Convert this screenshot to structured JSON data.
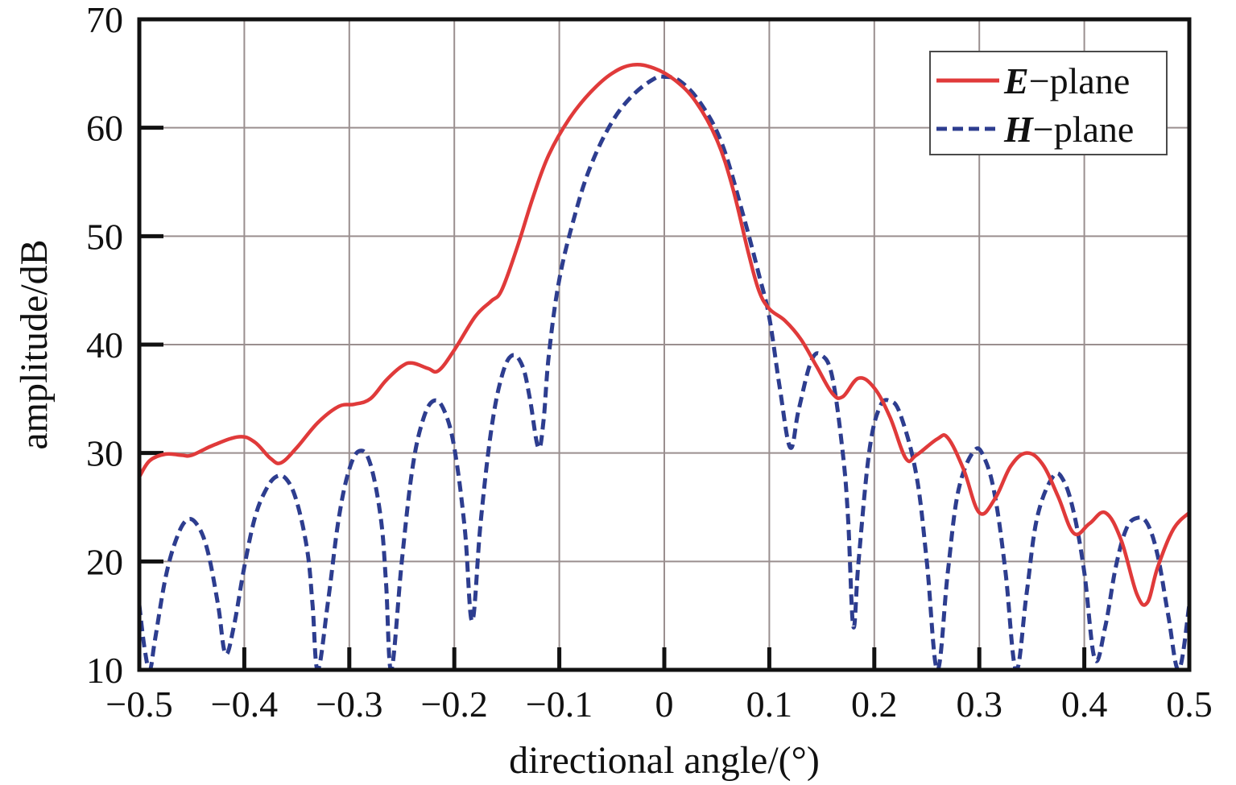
{
  "chart_data": {
    "type": "line",
    "title": "",
    "xlabel": "directional angle/(°)",
    "ylabel": "amplitude/dB",
    "xlim": [
      -0.5,
      0.5
    ],
    "ylim": [
      10,
      70
    ],
    "xticks": [
      -0.5,
      -0.4,
      -0.3,
      -0.2,
      -0.1,
      0,
      0.1,
      0.2,
      0.3,
      0.4,
      0.5
    ],
    "xtick_labels": [
      "−0.5",
      "−0.4",
      "−0.3",
      "−0.2",
      "−0.1",
      "0",
      "0.1",
      "0.2",
      "0.3",
      "0.4",
      "0.5"
    ],
    "yticks": [
      10,
      20,
      30,
      40,
      50,
      60,
      70
    ],
    "ytick_labels": [
      "10",
      "20",
      "30",
      "40",
      "50",
      "60",
      "70"
    ],
    "grid": true,
    "legend_position": "top-right",
    "series": [
      {
        "name": "E−plane",
        "name_em": "E",
        "name_rest": "−plane",
        "color": "#e03a3a",
        "dash": "solid",
        "points": [
          [
            -0.5,
            27.8
          ],
          [
            -0.49,
            29.3
          ],
          [
            -0.475,
            29.9
          ],
          [
            -0.46,
            29.8
          ],
          [
            -0.45,
            29.8
          ],
          [
            -0.43,
            30.7
          ],
          [
            -0.405,
            31.5
          ],
          [
            -0.39,
            31.0
          ],
          [
            -0.375,
            29.5
          ],
          [
            -0.365,
            29.1
          ],
          [
            -0.35,
            30.5
          ],
          [
            -0.33,
            32.8
          ],
          [
            -0.31,
            34.3
          ],
          [
            -0.295,
            34.5
          ],
          [
            -0.28,
            35.0
          ],
          [
            -0.265,
            36.7
          ],
          [
            -0.25,
            38.0
          ],
          [
            -0.24,
            38.3
          ],
          [
            -0.225,
            37.8
          ],
          [
            -0.215,
            37.6
          ],
          [
            -0.2,
            39.5
          ],
          [
            -0.18,
            42.6
          ],
          [
            -0.165,
            44.0
          ],
          [
            -0.155,
            45.0
          ],
          [
            -0.14,
            49.0
          ],
          [
            -0.125,
            53.6
          ],
          [
            -0.11,
            57.5
          ],
          [
            -0.09,
            60.9
          ],
          [
            -0.07,
            63.3
          ],
          [
            -0.05,
            65.0
          ],
          [
            -0.03,
            65.8
          ],
          [
            -0.01,
            65.5
          ],
          [
            0.01,
            64.4
          ],
          [
            0.03,
            62.4
          ],
          [
            0.05,
            58.9
          ],
          [
            0.065,
            54.5
          ],
          [
            0.08,
            48.5
          ],
          [
            0.09,
            45.0
          ],
          [
            0.1,
            43.3
          ],
          [
            0.115,
            42.2
          ],
          [
            0.13,
            40.5
          ],
          [
            0.145,
            38.0
          ],
          [
            0.16,
            35.5
          ],
          [
            0.17,
            35.2
          ],
          [
            0.185,
            36.9
          ],
          [
            0.2,
            36.0
          ],
          [
            0.215,
            33.3
          ],
          [
            0.23,
            29.5
          ],
          [
            0.24,
            29.8
          ],
          [
            0.26,
            31.3
          ],
          [
            0.27,
            31.4
          ],
          [
            0.285,
            28.5
          ],
          [
            0.3,
            24.5
          ],
          [
            0.315,
            25.8
          ],
          [
            0.33,
            28.8
          ],
          [
            0.345,
            30.0
          ],
          [
            0.36,
            29.0
          ],
          [
            0.375,
            26.0
          ],
          [
            0.39,
            22.6
          ],
          [
            0.405,
            23.5
          ],
          [
            0.42,
            24.5
          ],
          [
            0.435,
            22.0
          ],
          [
            0.45,
            17.0
          ],
          [
            0.46,
            16.2
          ],
          [
            0.47,
            19.5
          ],
          [
            0.485,
            23.0
          ],
          [
            0.5,
            24.5
          ]
        ]
      },
      {
        "name": "H−plane",
        "name_em": "H",
        "name_rest": "−plane",
        "color": "#2d3d8f",
        "dash": "dashed",
        "points": [
          [
            -0.5,
            16.0
          ],
          [
            -0.495,
            12.0
          ],
          [
            -0.49,
            10.0
          ],
          [
            -0.485,
            12.8
          ],
          [
            -0.475,
            18.5
          ],
          [
            -0.465,
            22.0
          ],
          [
            -0.455,
            23.8
          ],
          [
            -0.445,
            23.4
          ],
          [
            -0.435,
            21.0
          ],
          [
            -0.425,
            16.0
          ],
          [
            -0.418,
            11.5
          ],
          [
            -0.41,
            14.0
          ],
          [
            -0.4,
            19.5
          ],
          [
            -0.39,
            24.0
          ],
          [
            -0.38,
            26.5
          ],
          [
            -0.37,
            27.8
          ],
          [
            -0.36,
            27.6
          ],
          [
            -0.35,
            25.5
          ],
          [
            -0.34,
            21.0
          ],
          [
            -0.335,
            16.0
          ],
          [
            -0.33,
            10.0
          ],
          [
            -0.32,
            16.5
          ],
          [
            -0.31,
            24.0
          ],
          [
            -0.3,
            28.5
          ],
          [
            -0.29,
            30.2
          ],
          [
            -0.28,
            29.0
          ],
          [
            -0.27,
            24.0
          ],
          [
            -0.265,
            18.0
          ],
          [
            -0.26,
            10.0
          ],
          [
            -0.25,
            20.0
          ],
          [
            -0.24,
            28.5
          ],
          [
            -0.23,
            33.0
          ],
          [
            -0.22,
            34.8
          ],
          [
            -0.21,
            34.0
          ],
          [
            -0.2,
            30.5
          ],
          [
            -0.19,
            23.0
          ],
          [
            -0.183,
            14.5
          ],
          [
            -0.175,
            23.5
          ],
          [
            -0.165,
            32.0
          ],
          [
            -0.155,
            37.0
          ],
          [
            -0.145,
            39.0
          ],
          [
            -0.135,
            38.0
          ],
          [
            -0.128,
            35.0
          ],
          [
            -0.12,
            30.5
          ],
          [
            -0.115,
            33.0
          ],
          [
            -0.11,
            39.0
          ],
          [
            -0.1,
            46.0
          ],
          [
            -0.085,
            52.0
          ],
          [
            -0.07,
            56.5
          ],
          [
            -0.05,
            60.5
          ],
          [
            -0.03,
            63.0
          ],
          [
            -0.01,
            64.5
          ],
          [
            0.0,
            64.7
          ],
          [
            0.015,
            64.3
          ],
          [
            0.035,
            62.2
          ],
          [
            0.055,
            58.5
          ],
          [
            0.075,
            52.0
          ],
          [
            0.09,
            46.5
          ],
          [
            0.1,
            42.5
          ],
          [
            0.11,
            36.0
          ],
          [
            0.12,
            30.5
          ],
          [
            0.128,
            34.0
          ],
          [
            0.14,
            38.5
          ],
          [
            0.15,
            39.0
          ],
          [
            0.16,
            37.0
          ],
          [
            0.17,
            30.0
          ],
          [
            0.175,
            24.0
          ],
          [
            0.18,
            14.0
          ],
          [
            0.185,
            20.0
          ],
          [
            0.195,
            30.0
          ],
          [
            0.205,
            34.2
          ],
          [
            0.215,
            34.8
          ],
          [
            0.225,
            33.5
          ],
          [
            0.24,
            28.0
          ],
          [
            0.25,
            20.0
          ],
          [
            0.26,
            10.0
          ],
          [
            0.27,
            19.0
          ],
          [
            0.28,
            26.5
          ],
          [
            0.295,
            30.2
          ],
          [
            0.305,
            29.5
          ],
          [
            0.315,
            26.0
          ],
          [
            0.325,
            19.0
          ],
          [
            0.335,
            10.0
          ],
          [
            0.345,
            17.0
          ],
          [
            0.355,
            24.0
          ],
          [
            0.37,
            27.8
          ],
          [
            0.38,
            27.5
          ],
          [
            0.39,
            24.5
          ],
          [
            0.4,
            19.0
          ],
          [
            0.41,
            11.0
          ],
          [
            0.42,
            14.0
          ],
          [
            0.43,
            19.5
          ],
          [
            0.44,
            23.0
          ],
          [
            0.45,
            24.0
          ],
          [
            0.46,
            23.5
          ],
          [
            0.47,
            20.5
          ],
          [
            0.48,
            15.0
          ],
          [
            0.49,
            10.0
          ],
          [
            0.5,
            16.0
          ]
        ]
      }
    ]
  }
}
